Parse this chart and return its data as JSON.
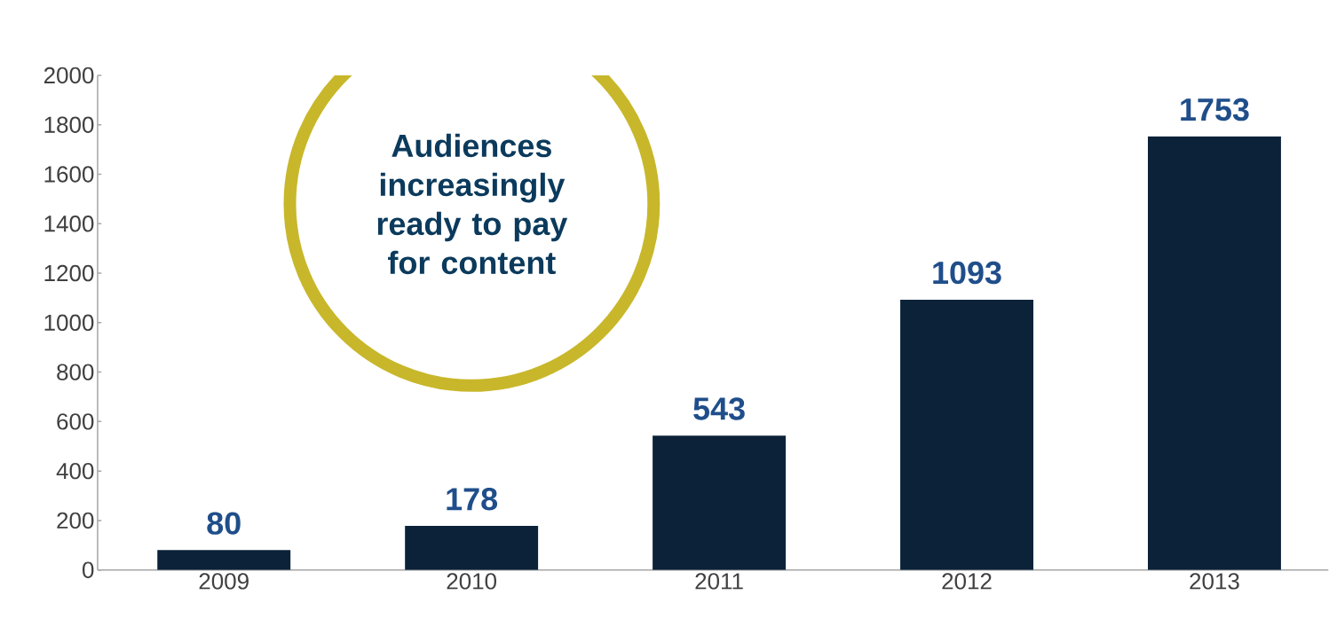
{
  "chart_data": {
    "type": "bar",
    "categories": [
      "2009",
      "2010",
      "2011",
      "2012",
      "2013"
    ],
    "values": [
      80,
      178,
      543,
      1093,
      1753
    ],
    "color": "#0b2239",
    "ylim": [
      0,
      2000
    ],
    "yticks": [
      0,
      200,
      400,
      600,
      800,
      1000,
      1200,
      1400,
      1600,
      1800,
      2000
    ],
    "data_labels": true,
    "annotations": [
      "Audiences increasingly ready to pay for content"
    ]
  }
}
